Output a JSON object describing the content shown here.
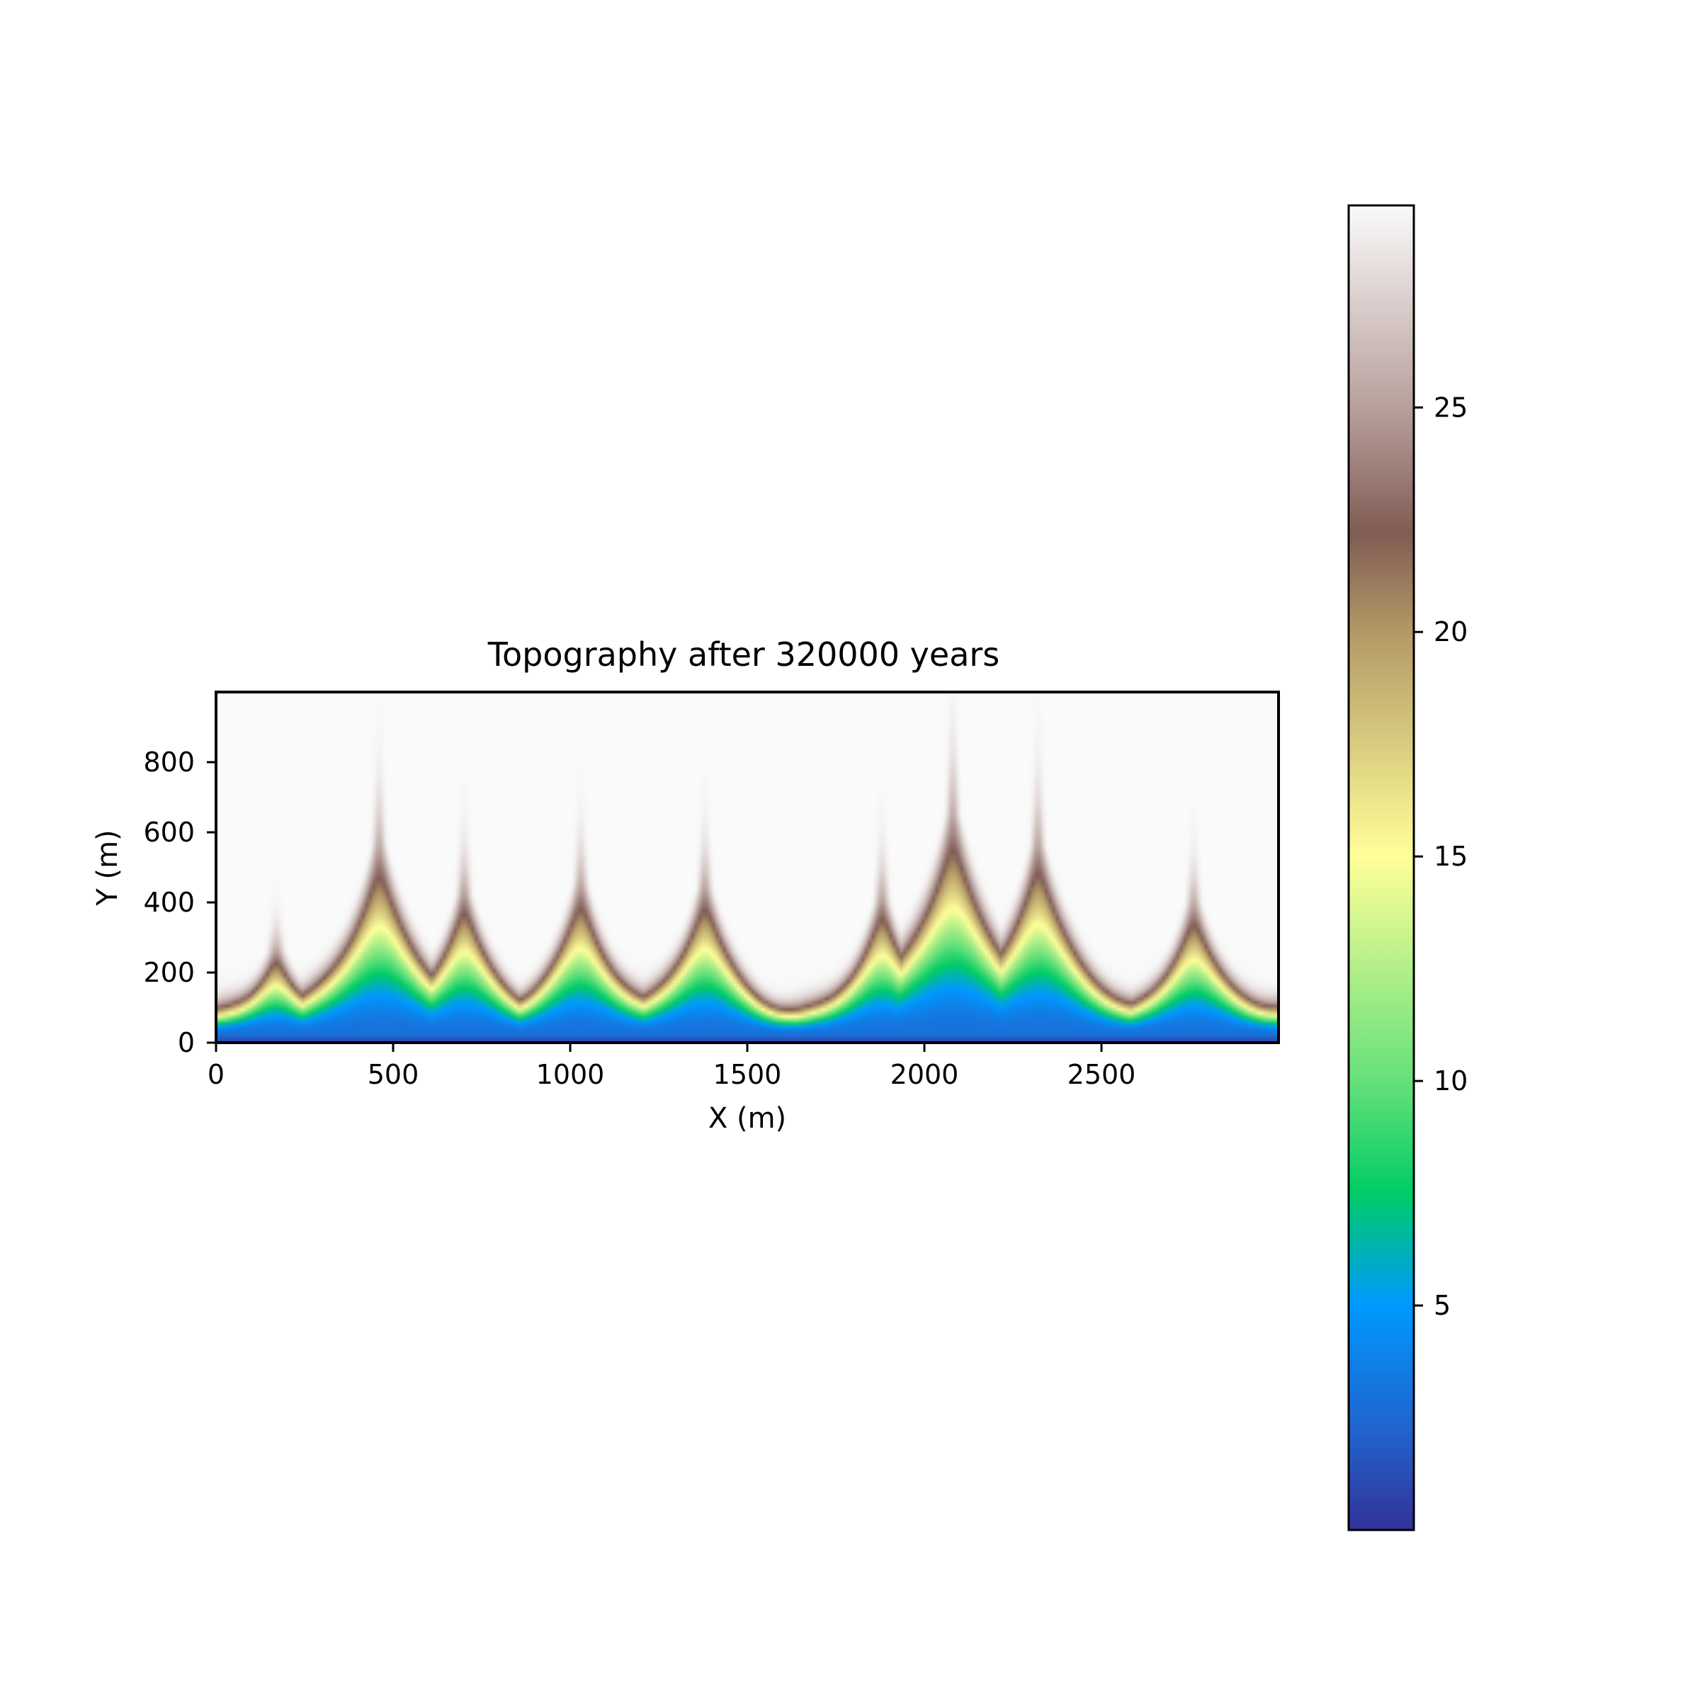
{
  "chart_data": {
    "type": "heatmap",
    "title": "Topography after 320000 years",
    "xlabel": "X (m)",
    "ylabel": "Y (m)",
    "xlim": [
      0,
      3000
    ],
    "ylim": [
      0,
      1000
    ],
    "x_ticks": [
      0,
      500,
      1000,
      1500,
      2000,
      2500
    ],
    "y_ticks": [
      0,
      200,
      400,
      600,
      800
    ],
    "colormap": "terrain",
    "colorbar": {
      "range": [
        0,
        29.5
      ],
      "ticks": [
        5,
        10,
        15,
        20,
        25
      ],
      "stops": [
        {
          "value": 0,
          "color": "#333399"
        },
        {
          "value": 2.2,
          "color": "#2162cc"
        },
        {
          "value": 5,
          "color": "#0099ff"
        },
        {
          "value": 7.5,
          "color": "#00cc66"
        },
        {
          "value": 10,
          "color": "#66e07a"
        },
        {
          "value": 15,
          "color": "#ffff99"
        },
        {
          "value": 20,
          "color": "#b39966"
        },
        {
          "value": 22.2,
          "color": "#805c54"
        },
        {
          "value": 25,
          "color": "#b8a09c"
        },
        {
          "value": 29.5,
          "color": "#fafafa"
        }
      ]
    },
    "surface_model": {
      "description": "elevation rises from ~0 m at y=0 to ~29.5 m on the plateau; incised valleys at listed x positions",
      "ridge_front_y": 110,
      "valleys": [
        {
          "x": 170,
          "reach_y": 260
        },
        {
          "x": 460,
          "reach_y": 560
        },
        {
          "x": 700,
          "reach_y": 420
        },
        {
          "x": 1030,
          "reach_y": 450
        },
        {
          "x": 1380,
          "reach_y": 440
        },
        {
          "x": 1880,
          "reach_y": 400
        },
        {
          "x": 2080,
          "reach_y": 650
        },
        {
          "x": 2320,
          "reach_y": 560
        },
        {
          "x": 2760,
          "reach_y": 400
        }
      ]
    }
  }
}
